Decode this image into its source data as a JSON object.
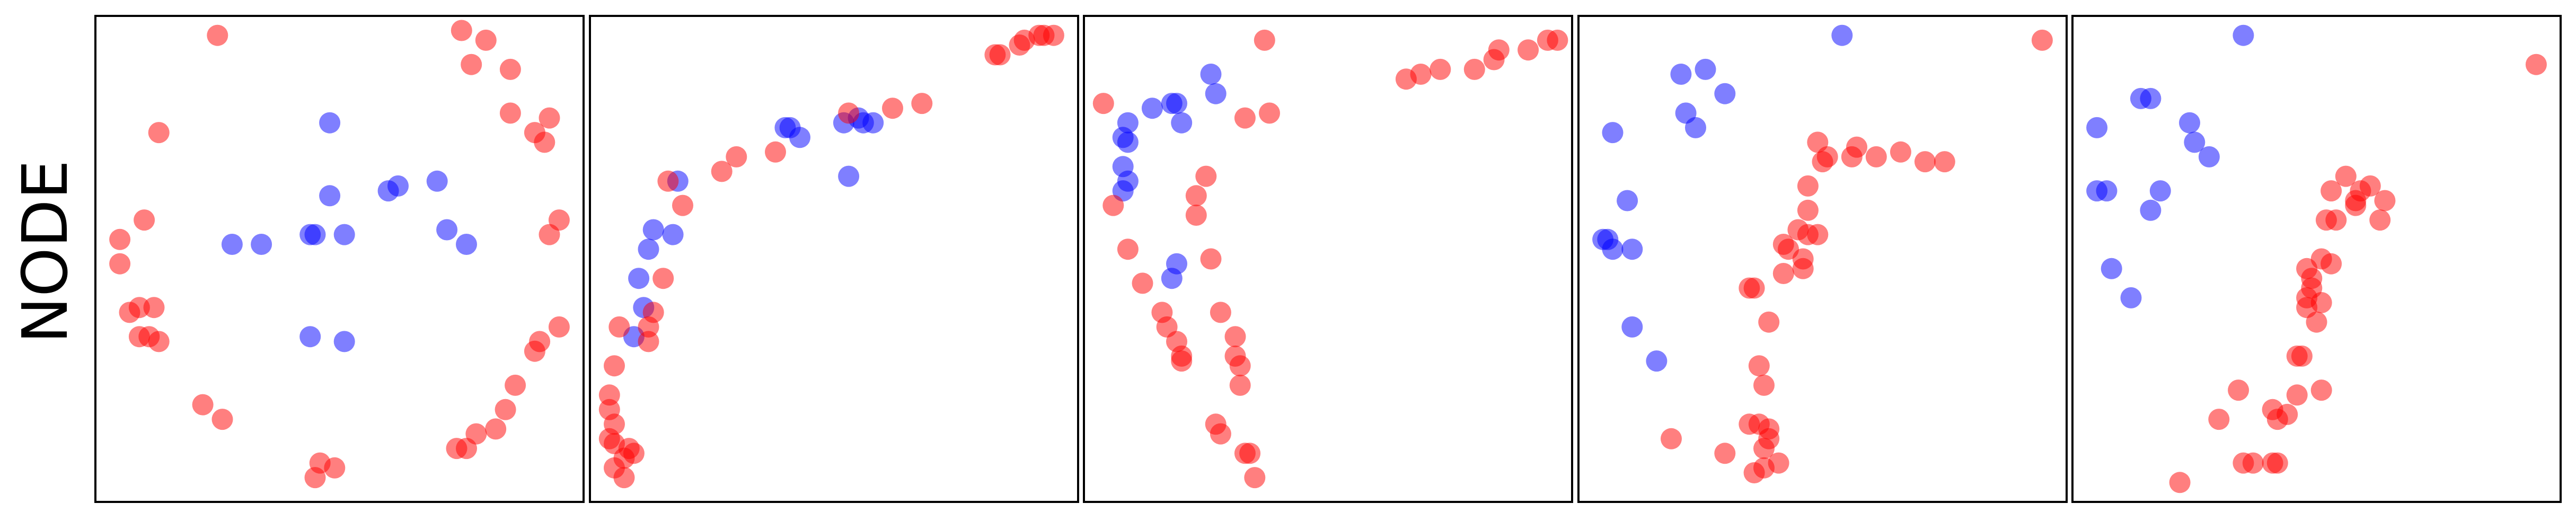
{
  "row_label": "NODE",
  "colors": {
    "class_a": "#ff0000",
    "class_b": "#0000ff",
    "frame": "#000000"
  },
  "chart_data": [
    {
      "type": "scatter",
      "grid": false,
      "xlim": [
        0,
        1
      ],
      "ylim": [
        0,
        1
      ],
      "series": [
        {
          "color": "#0000ff",
          "points": [
            [
              0.48,
              0.78
            ],
            [
              0.6,
              0.64
            ],
            [
              0.62,
              0.65
            ],
            [
              0.7,
              0.66
            ],
            [
              0.48,
              0.63
            ],
            [
              0.51,
              0.55
            ],
            [
              0.45,
              0.55
            ],
            [
              0.44,
              0.55
            ],
            [
              0.34,
              0.53
            ],
            [
              0.28,
              0.53
            ],
            [
              0.72,
              0.56
            ],
            [
              0.76,
              0.53
            ],
            [
              0.44,
              0.34
            ],
            [
              0.51,
              0.33
            ]
          ]
        },
        {
          "color": "#ff0000",
          "points": [
            [
              0.25,
              0.96
            ],
            [
              0.75,
              0.97
            ],
            [
              0.8,
              0.95
            ],
            [
              0.77,
              0.9
            ],
            [
              0.85,
              0.89
            ],
            [
              0.85,
              0.8
            ],
            [
              0.93,
              0.79
            ],
            [
              0.9,
              0.76
            ],
            [
              0.92,
              0.74
            ],
            [
              0.13,
              0.76
            ],
            [
              0.1,
              0.58
            ],
            [
              0.05,
              0.54
            ],
            [
              0.05,
              0.49
            ],
            [
              0.07,
              0.39
            ],
            [
              0.09,
              0.4
            ],
            [
              0.12,
              0.4
            ],
            [
              0.09,
              0.34
            ],
            [
              0.11,
              0.34
            ],
            [
              0.13,
              0.33
            ],
            [
              0.95,
              0.58
            ],
            [
              0.93,
              0.55
            ],
            [
              0.95,
              0.36
            ],
            [
              0.91,
              0.33
            ],
            [
              0.9,
              0.31
            ],
            [
              0.86,
              0.24
            ],
            [
              0.84,
              0.19
            ],
            [
              0.82,
              0.15
            ],
            [
              0.76,
              0.11
            ],
            [
              0.78,
              0.14
            ],
            [
              0.74,
              0.11
            ],
            [
              0.22,
              0.2
            ],
            [
              0.26,
              0.17
            ],
            [
              0.46,
              0.08
            ],
            [
              0.49,
              0.07
            ],
            [
              0.45,
              0.05
            ]
          ]
        }
      ]
    },
    {
      "type": "scatter",
      "grid": false,
      "xlim": [
        0,
        1
      ],
      "ylim": [
        0,
        1
      ],
      "series": [
        {
          "color": "#0000ff",
          "points": [
            [
              0.53,
              0.67
            ],
            [
              0.43,
              0.75
            ],
            [
              0.4,
              0.77
            ],
            [
              0.41,
              0.77
            ],
            [
              0.52,
              0.78
            ],
            [
              0.55,
              0.79
            ],
            [
              0.56,
              0.78
            ],
            [
              0.58,
              0.78
            ],
            [
              0.18,
              0.66
            ],
            [
              0.13,
              0.56
            ],
            [
              0.12,
              0.52
            ],
            [
              0.1,
              0.46
            ],
            [
              0.11,
              0.4
            ],
            [
              0.09,
              0.34
            ],
            [
              0.17,
              0.55
            ]
          ]
        },
        {
          "color": "#ff0000",
          "points": [
            [
              0.53,
              0.8
            ],
            [
              0.62,
              0.81
            ],
            [
              0.68,
              0.82
            ],
            [
              0.83,
              0.92
            ],
            [
              0.84,
              0.92
            ],
            [
              0.88,
              0.94
            ],
            [
              0.89,
              0.95
            ],
            [
              0.92,
              0.96
            ],
            [
              0.93,
              0.96
            ],
            [
              0.95,
              0.96
            ],
            [
              0.38,
              0.72
            ],
            [
              0.3,
              0.71
            ],
            [
              0.27,
              0.68
            ],
            [
              0.16,
              0.66
            ],
            [
              0.19,
              0.61
            ],
            [
              0.15,
              0.46
            ],
            [
              0.13,
              0.39
            ],
            [
              0.12,
              0.36
            ],
            [
              0.06,
              0.36
            ],
            [
              0.12,
              0.33
            ],
            [
              0.05,
              0.28
            ],
            [
              0.04,
              0.22
            ],
            [
              0.04,
              0.19
            ],
            [
              0.05,
              0.16
            ],
            [
              0.04,
              0.13
            ],
            [
              0.05,
              0.12
            ],
            [
              0.08,
              0.11
            ],
            [
              0.09,
              0.1
            ],
            [
              0.07,
              0.09
            ],
            [
              0.05,
              0.07
            ],
            [
              0.07,
              0.05
            ]
          ]
        }
      ]
    },
    {
      "type": "scatter",
      "grid": false,
      "xlim": [
        0,
        1
      ],
      "ylim": [
        0,
        1
      ],
      "series": [
        {
          "color": "#0000ff",
          "points": [
            [
              0.26,
              0.88
            ],
            [
              0.18,
              0.82
            ],
            [
              0.19,
              0.82
            ],
            [
              0.27,
              0.84
            ],
            [
              0.14,
              0.81
            ],
            [
              0.09,
              0.78
            ],
            [
              0.2,
              0.78
            ],
            [
              0.08,
              0.75
            ],
            [
              0.09,
              0.74
            ],
            [
              0.08,
              0.69
            ],
            [
              0.09,
              0.66
            ],
            [
              0.08,
              0.64
            ],
            [
              0.19,
              0.49
            ],
            [
              0.18,
              0.46
            ]
          ]
        },
        {
          "color": "#ff0000",
          "points": [
            [
              0.37,
              0.95
            ],
            [
              0.04,
              0.82
            ],
            [
              0.33,
              0.79
            ],
            [
              0.38,
              0.8
            ],
            [
              0.06,
              0.61
            ],
            [
              0.25,
              0.67
            ],
            [
              0.23,
              0.63
            ],
            [
              0.23,
              0.59
            ],
            [
              0.09,
              0.52
            ],
            [
              0.26,
              0.5
            ],
            [
              0.12,
              0.45
            ],
            [
              0.16,
              0.39
            ],
            [
              0.17,
              0.36
            ],
            [
              0.19,
              0.33
            ],
            [
              0.2,
              0.3
            ],
            [
              0.2,
              0.29
            ],
            [
              0.28,
              0.39
            ],
            [
              0.31,
              0.34
            ],
            [
              0.31,
              0.3
            ],
            [
              0.32,
              0.28
            ],
            [
              0.32,
              0.24
            ],
            [
              0.27,
              0.16
            ],
            [
              0.28,
              0.14
            ],
            [
              0.33,
              0.1
            ],
            [
              0.34,
              0.1
            ],
            [
              0.35,
              0.05
            ],
            [
              0.66,
              0.87
            ],
            [
              0.69,
              0.88
            ],
            [
              0.73,
              0.89
            ],
            [
              0.8,
              0.89
            ],
            [
              0.84,
              0.91
            ],
            [
              0.85,
              0.93
            ],
            [
              0.91,
              0.93
            ],
            [
              0.95,
              0.95
            ],
            [
              0.97,
              0.95
            ]
          ]
        }
      ]
    },
    {
      "type": "scatter",
      "grid": false,
      "xlim": [
        0,
        1
      ],
      "ylim": [
        0,
        1
      ],
      "series": [
        {
          "color": "#0000ff",
          "points": [
            [
              0.54,
              0.96
            ],
            [
              0.21,
              0.88
            ],
            [
              0.26,
              0.89
            ],
            [
              0.3,
              0.84
            ],
            [
              0.22,
              0.8
            ],
            [
              0.24,
              0.77
            ],
            [
              0.07,
              0.76
            ],
            [
              0.1,
              0.62
            ],
            [
              0.05,
              0.54
            ],
            [
              0.06,
              0.54
            ],
            [
              0.07,
              0.52
            ],
            [
              0.11,
              0.52
            ],
            [
              0.11,
              0.36
            ],
            [
              0.16,
              0.29
            ]
          ]
        },
        {
          "color": "#ff0000",
          "points": [
            [
              0.95,
              0.95
            ],
            [
              0.49,
              0.74
            ],
            [
              0.5,
              0.7
            ],
            [
              0.51,
              0.71
            ],
            [
              0.56,
              0.71
            ],
            [
              0.57,
              0.73
            ],
            [
              0.61,
              0.71
            ],
            [
              0.66,
              0.72
            ],
            [
              0.71,
              0.7
            ],
            [
              0.75,
              0.7
            ],
            [
              0.47,
              0.65
            ],
            [
              0.47,
              0.6
            ],
            [
              0.45,
              0.56
            ],
            [
              0.47,
              0.55
            ],
            [
              0.49,
              0.55
            ],
            [
              0.42,
              0.53
            ],
            [
              0.43,
              0.52
            ],
            [
              0.46,
              0.5
            ],
            [
              0.46,
              0.48
            ],
            [
              0.42,
              0.47
            ],
            [
              0.36,
              0.44
            ],
            [
              0.35,
              0.44
            ],
            [
              0.39,
              0.37
            ],
            [
              0.37,
              0.28
            ],
            [
              0.38,
              0.24
            ],
            [
              0.35,
              0.16
            ],
            [
              0.37,
              0.16
            ],
            [
              0.39,
              0.15
            ],
            [
              0.39,
              0.13
            ],
            [
              0.38,
              0.11
            ],
            [
              0.41,
              0.08
            ],
            [
              0.38,
              0.07
            ],
            [
              0.36,
              0.06
            ],
            [
              0.19,
              0.13
            ],
            [
              0.3,
              0.1
            ]
          ]
        }
      ]
    },
    {
      "type": "scatter",
      "grid": false,
      "xlim": [
        0,
        1
      ],
      "ylim": [
        0,
        1
      ],
      "series": [
        {
          "color": "#0000ff",
          "points": [
            [
              0.35,
              0.96
            ],
            [
              0.14,
              0.83
            ],
            [
              0.16,
              0.83
            ],
            [
              0.24,
              0.78
            ],
            [
              0.25,
              0.74
            ],
            [
              0.28,
              0.71
            ],
            [
              0.05,
              0.77
            ],
            [
              0.05,
              0.64
            ],
            [
              0.07,
              0.64
            ],
            [
              0.18,
              0.64
            ],
            [
              0.16,
              0.6
            ],
            [
              0.08,
              0.48
            ],
            [
              0.12,
              0.42
            ]
          ]
        },
        {
          "color": "#ff0000",
          "points": [
            [
              0.95,
              0.9
            ],
            [
              0.56,
              0.67
            ],
            [
              0.53,
              0.64
            ],
            [
              0.59,
              0.64
            ],
            [
              0.61,
              0.65
            ],
            [
              0.64,
              0.62
            ],
            [
              0.58,
              0.62
            ],
            [
              0.58,
              0.61
            ],
            [
              0.52,
              0.58
            ],
            [
              0.54,
              0.58
            ],
            [
              0.63,
              0.58
            ],
            [
              0.51,
              0.5
            ],
            [
              0.53,
              0.49
            ],
            [
              0.48,
              0.48
            ],
            [
              0.49,
              0.46
            ],
            [
              0.49,
              0.44
            ],
            [
              0.48,
              0.42
            ],
            [
              0.48,
              0.4
            ],
            [
              0.51,
              0.41
            ],
            [
              0.5,
              0.37
            ],
            [
              0.46,
              0.3
            ],
            [
              0.47,
              0.3
            ],
            [
              0.51,
              0.23
            ],
            [
              0.46,
              0.22
            ],
            [
              0.44,
              0.18
            ],
            [
              0.41,
              0.19
            ],
            [
              0.42,
              0.17
            ],
            [
              0.34,
              0.23
            ],
            [
              0.3,
              0.17
            ],
            [
              0.35,
              0.08
            ],
            [
              0.37,
              0.08
            ],
            [
              0.41,
              0.08
            ],
            [
              0.42,
              0.08
            ],
            [
              0.22,
              0.04
            ]
          ]
        }
      ]
    }
  ]
}
